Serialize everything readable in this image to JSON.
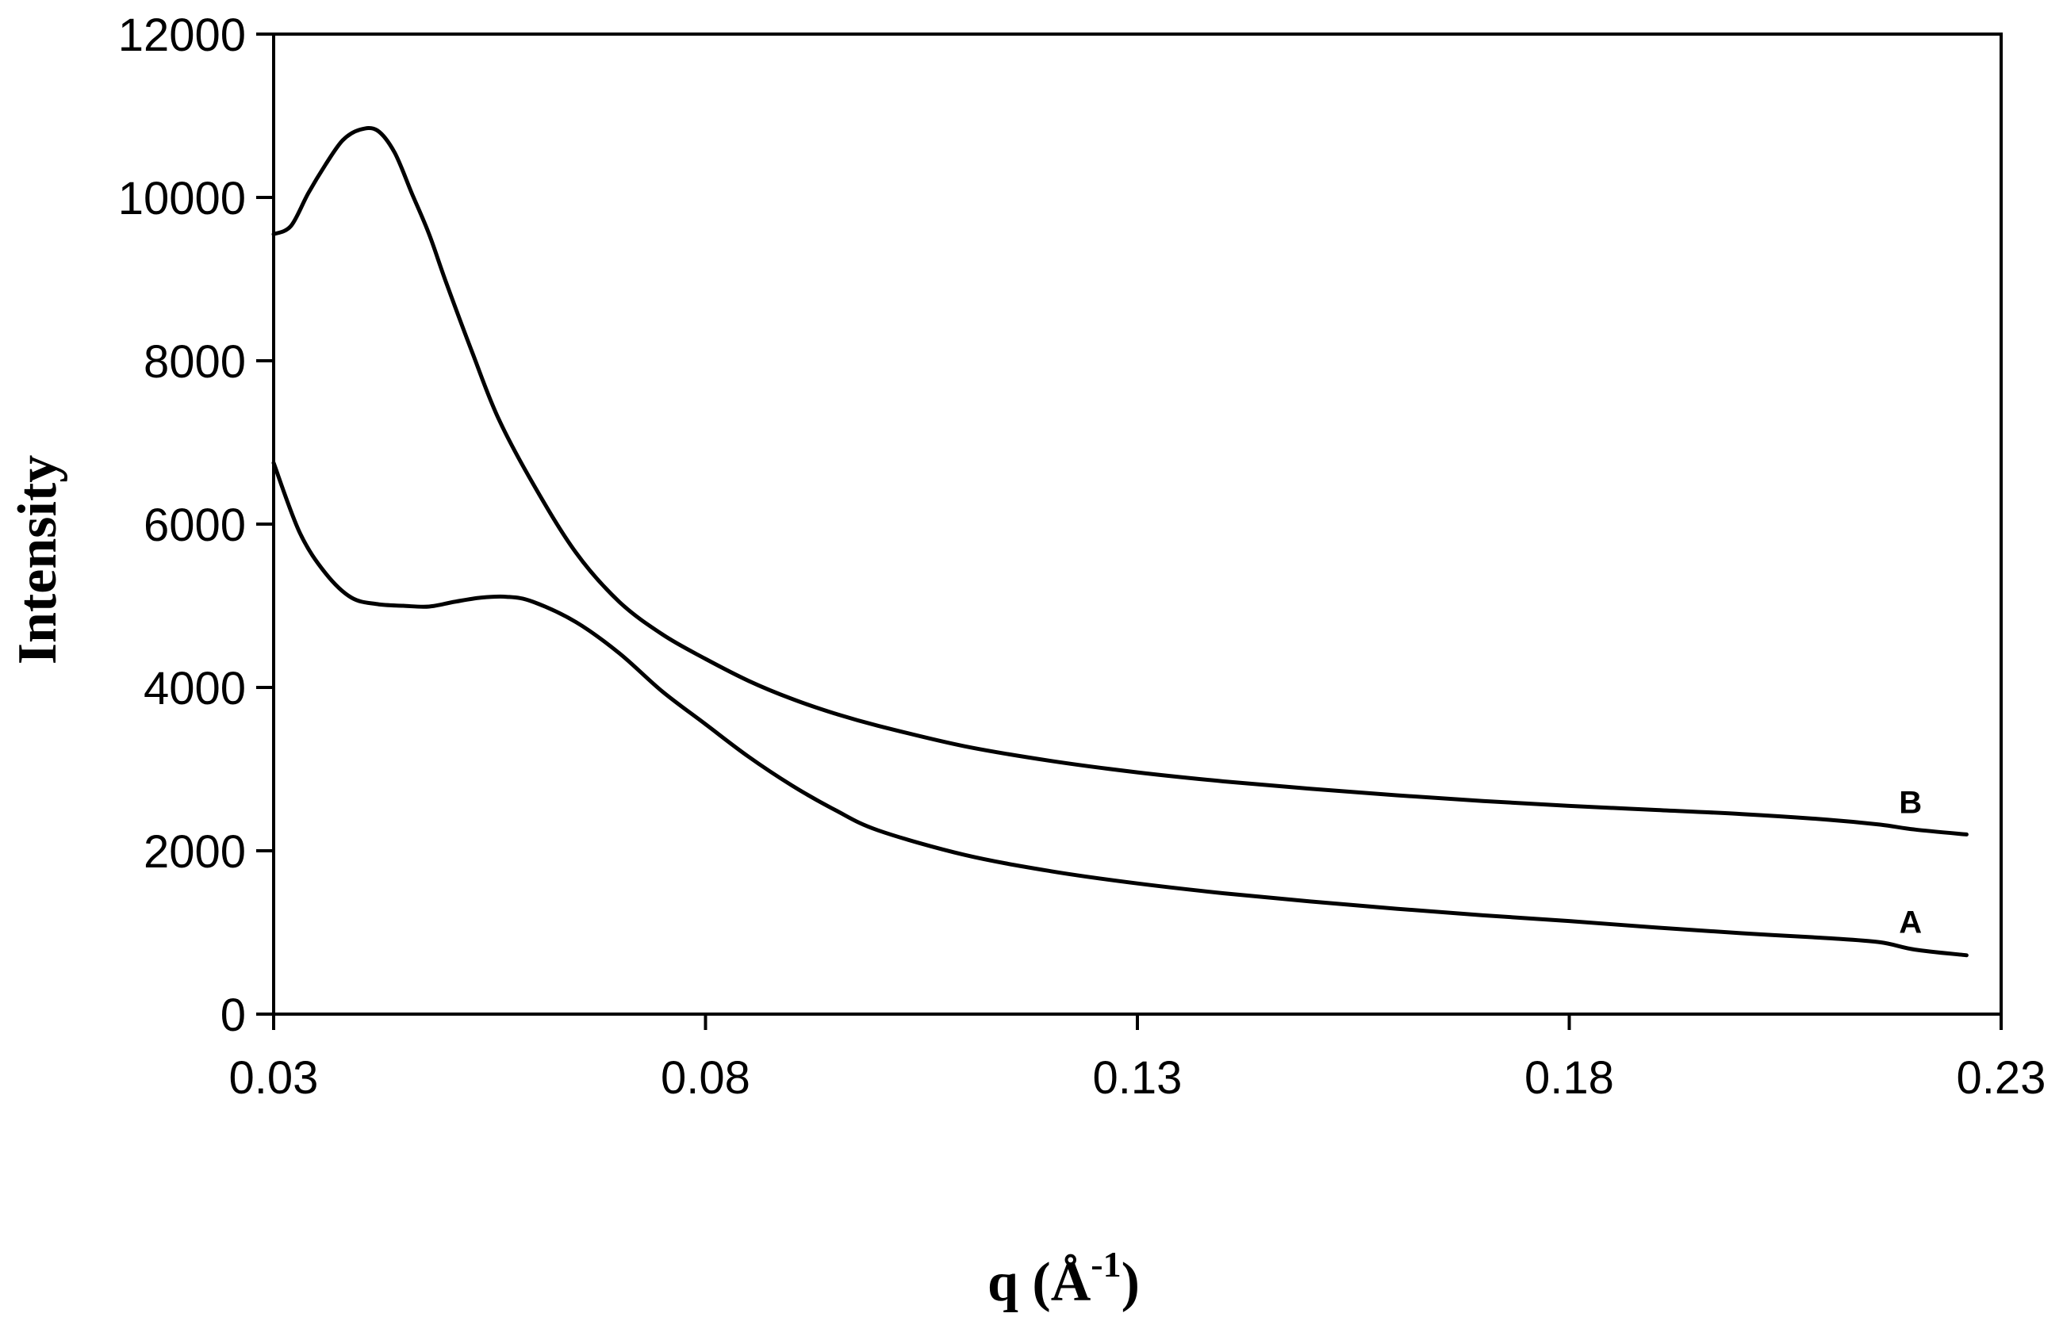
{
  "chart_data": {
    "type": "line",
    "title": "",
    "xlabel": "q (Å",
    "xlabel_sup": "-1",
    "xlabel_close": ")",
    "ylabel": "Intensity",
    "xlim": [
      0.03,
      0.23
    ],
    "ylim": [
      0,
      12000
    ],
    "x_ticks": [
      "0.03",
      "0.08",
      "0.13",
      "0.18",
      "0.23"
    ],
    "y_ticks": [
      "0",
      "2000",
      "4000",
      "6000",
      "8000",
      "10000",
      "12000"
    ],
    "grid": false,
    "legend": "none",
    "series": [
      {
        "name": "A",
        "x": [
          0.03,
          0.033,
          0.036,
          0.039,
          0.042,
          0.045,
          0.048,
          0.051,
          0.054,
          0.057,
          0.06,
          0.065,
          0.07,
          0.075,
          0.08,
          0.085,
          0.09,
          0.095,
          0.1,
          0.11,
          0.12,
          0.13,
          0.14,
          0.15,
          0.16,
          0.17,
          0.18,
          0.19,
          0.2,
          0.21,
          0.216,
          0.22,
          0.226
        ],
        "values": [
          6750,
          5900,
          5400,
          5100,
          5020,
          5000,
          4990,
          5050,
          5100,
          5110,
          5050,
          4800,
          4420,
          3950,
          3550,
          3150,
          2800,
          2500,
          2250,
          1950,
          1750,
          1600,
          1480,
          1380,
          1290,
          1210,
          1140,
          1060,
          990,
          930,
          880,
          790,
          720
        ]
      },
      {
        "name": "B",
        "x": [
          0.03,
          0.032,
          0.034,
          0.036,
          0.038,
          0.04,
          0.042,
          0.044,
          0.046,
          0.048,
          0.05,
          0.053,
          0.056,
          0.06,
          0.065,
          0.07,
          0.075,
          0.08,
          0.085,
          0.09,
          0.095,
          0.1,
          0.11,
          0.12,
          0.13,
          0.14,
          0.15,
          0.16,
          0.17,
          0.18,
          0.19,
          0.2,
          0.21,
          0.216,
          0.22,
          0.226
        ],
        "values": [
          9550,
          9650,
          10050,
          10400,
          10700,
          10830,
          10820,
          10550,
          10050,
          9550,
          8950,
          8100,
          7300,
          6500,
          5650,
          5050,
          4650,
          4350,
          4080,
          3860,
          3680,
          3530,
          3280,
          3100,
          2960,
          2850,
          2760,
          2680,
          2610,
          2550,
          2500,
          2450,
          2380,
          2320,
          2260,
          2200
        ]
      }
    ]
  }
}
